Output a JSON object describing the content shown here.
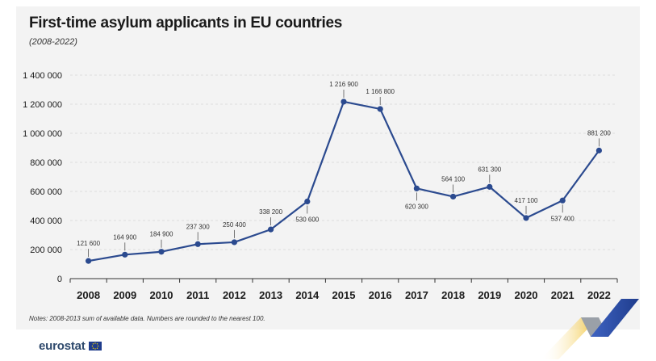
{
  "title": "First-time asylum applicants in EU countries",
  "subtitle": "(2008-2022)",
  "note": "Notes: 2008-2013 sum of available data. Numbers are rounded to the nearest 100.",
  "brand": "eurostat",
  "colors": {
    "line": "#2b4a8f",
    "grid": "#d6d6d6",
    "text": "#1a1a1a"
  },
  "chart_data": {
    "type": "line",
    "title": "First-time asylum applicants in EU countries",
    "x": [
      "2008",
      "2009",
      "2010",
      "2011",
      "2012",
      "2013",
      "2014",
      "2015",
      "2016",
      "2017",
      "2018",
      "2019",
      "2020",
      "2021",
      "2022"
    ],
    "series": [
      {
        "name": "First-time asylum applicants",
        "values": [
          121600,
          164900,
          184900,
          237300,
          250400,
          338200,
          530600,
          1216900,
          1166800,
          620300,
          564100,
          631300,
          417100,
          537400,
          881200
        ]
      }
    ],
    "data_labels": [
      "121 600",
      "164 900",
      "184 900",
      "237 300",
      "250 400",
      "338 200",
      "530 600",
      "1 216 900",
      "1 166 800",
      "620 300",
      "564 100",
      "631 300",
      "417 100",
      "537 400",
      "881 200"
    ],
    "label_positions": [
      "above",
      "above",
      "above",
      "above",
      "above",
      "above",
      "below",
      "above",
      "above",
      "below",
      "above",
      "above",
      "above",
      "below",
      "above"
    ],
    "yticks": [
      0,
      200000,
      400000,
      600000,
      800000,
      1000000,
      1200000,
      1400000
    ],
    "ytick_labels": [
      "0",
      "200 000",
      "400 000",
      "600 000",
      "800 000",
      "1 000 000",
      "1 200 000",
      "1 400 000"
    ],
    "ylim": [
      0,
      1400000
    ],
    "xlabel": "",
    "ylabel": "",
    "grid": true
  }
}
